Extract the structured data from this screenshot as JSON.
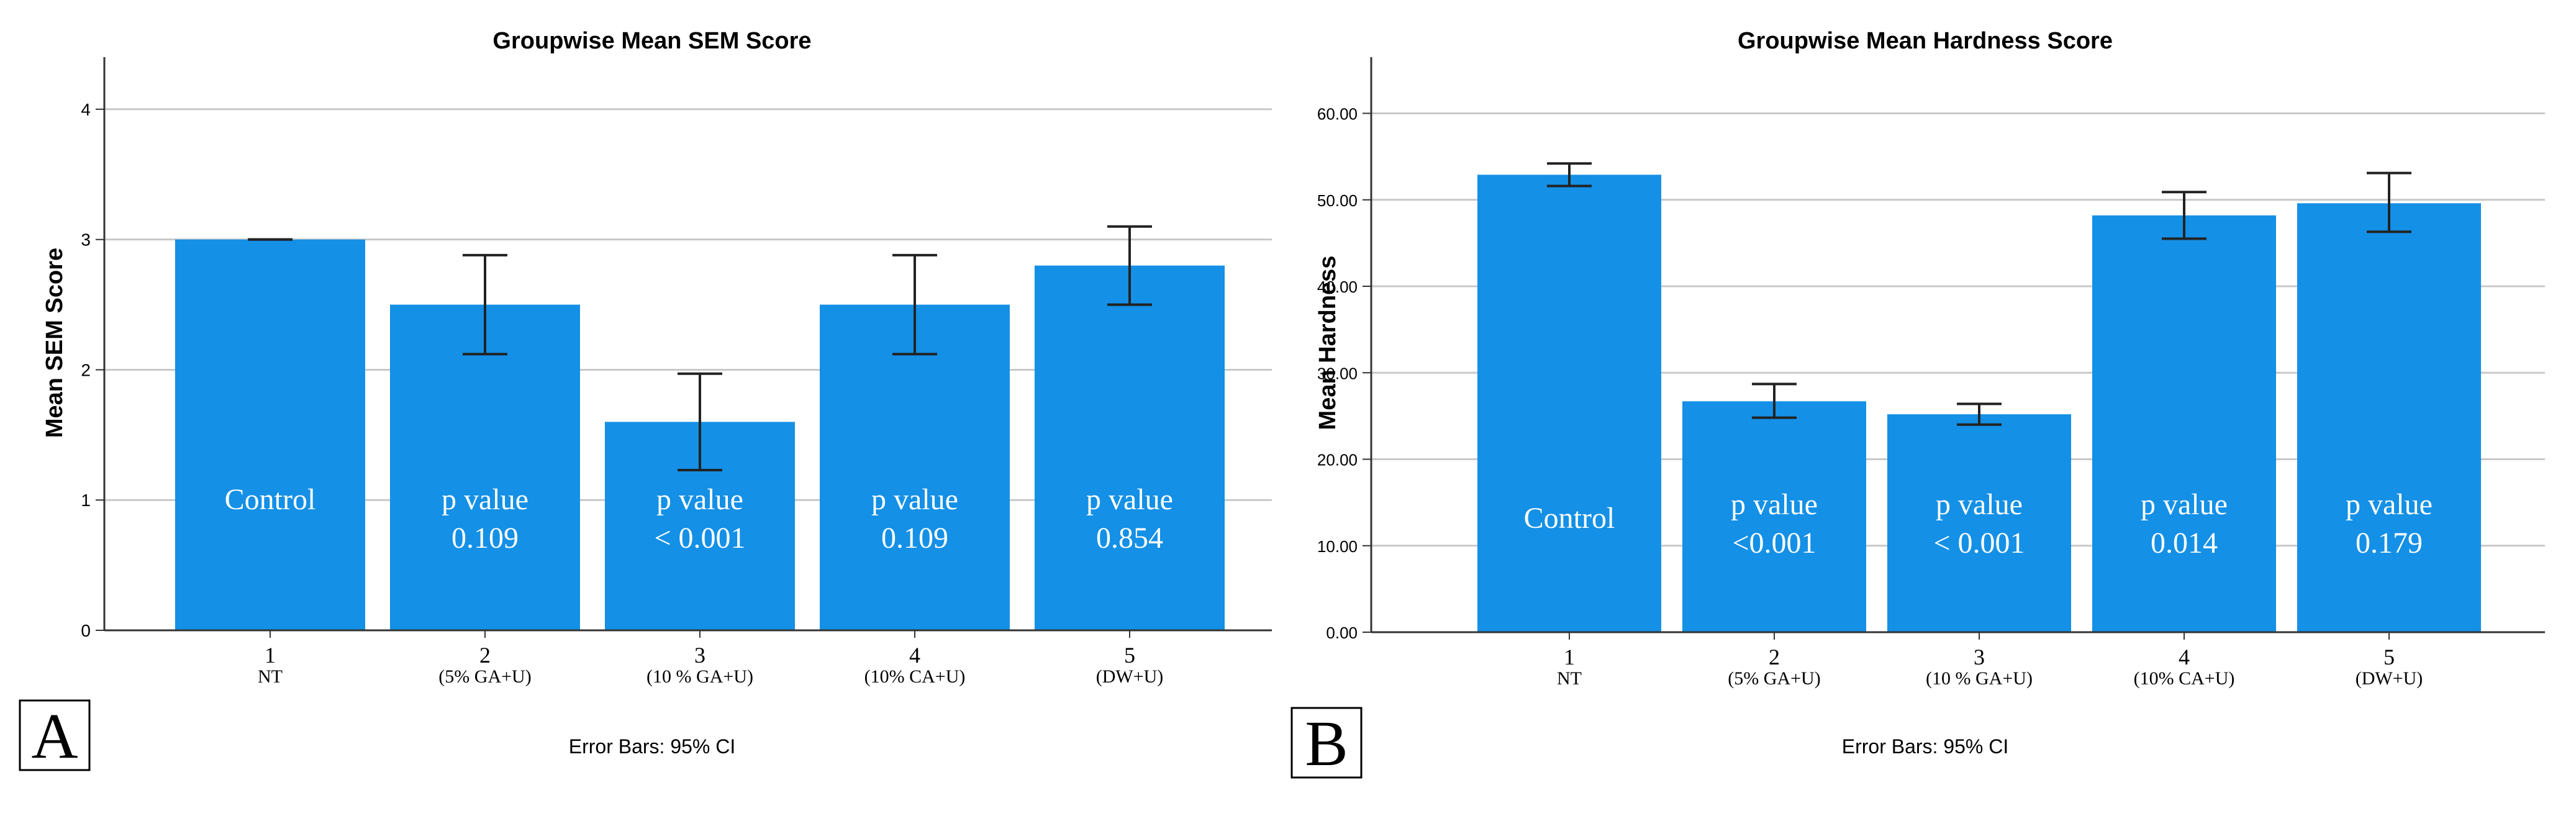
{
  "panels": [
    {
      "label": "A",
      "chart_data": {
        "type": "bar",
        "title": "Groupwise Mean SEM Score",
        "ylabel": "Mean SEM Score",
        "xlabel": "",
        "footnote": "Error Bars: 95% CI",
        "categories": [
          "1",
          "2",
          "3",
          "4",
          "5"
        ],
        "category_sublabels": [
          "NT",
          "(5% GA+U)",
          "(10 % GA+U)",
          "(10% CA+U)",
          "(DW+U)"
        ],
        "values": [
          3.0,
          2.5,
          1.6,
          2.5,
          2.8
        ],
        "ci_low": [
          3.0,
          2.12,
          1.23,
          2.12,
          2.5
        ],
        "ci_high": [
          3.0,
          2.88,
          1.97,
          2.88,
          3.1
        ],
        "bar_text": [
          [
            "Control"
          ],
          [
            "p value",
            "0.109"
          ],
          [
            "p value",
            "< 0.001"
          ],
          [
            "p value",
            "0.109"
          ],
          [
            "p value",
            "0.854"
          ]
        ],
        "ylim": [
          0,
          4.4
        ],
        "yticks": [
          0,
          1,
          2,
          3,
          4
        ],
        "ytick_labels": [
          "0",
          "1",
          "2",
          "3",
          "4"
        ],
        "grid": true,
        "bar_color": "#1490E6"
      }
    },
    {
      "label": "B",
      "chart_data": {
        "type": "bar",
        "title": "Groupwise Mean Hardness Score",
        "ylabel": "Mean Hardness",
        "xlabel": "",
        "footnote": "Error Bars: 95% CI",
        "categories": [
          "1",
          "2",
          "3",
          "4",
          "5"
        ],
        "category_sublabels": [
          "NT",
          "(5% GA+U)",
          "(10 % GA+U)",
          "(10% CA+U)",
          "(DW+U)"
        ],
        "values": [
          52.9,
          26.7,
          25.2,
          48.2,
          49.6
        ],
        "ci_low": [
          51.6,
          24.8,
          24.0,
          45.5,
          46.3
        ],
        "ci_high": [
          54.2,
          28.7,
          26.4,
          50.9,
          53.1
        ],
        "bar_text": [
          [
            "Control"
          ],
          [
            "p value",
            "<0.001"
          ],
          [
            "p value",
            "< 0.001"
          ],
          [
            "p value",
            "0.014"
          ],
          [
            "p value",
            "0.179"
          ]
        ],
        "ylim": [
          0,
          66.5
        ],
        "yticks": [
          0,
          10,
          20,
          30,
          40,
          50,
          60
        ],
        "ytick_labels": [
          "0.00",
          "10.00",
          "20.00",
          "30.00",
          "40.00",
          "50.00",
          "60.00"
        ],
        "grid": true,
        "bar_color": "#1490E6"
      }
    }
  ]
}
